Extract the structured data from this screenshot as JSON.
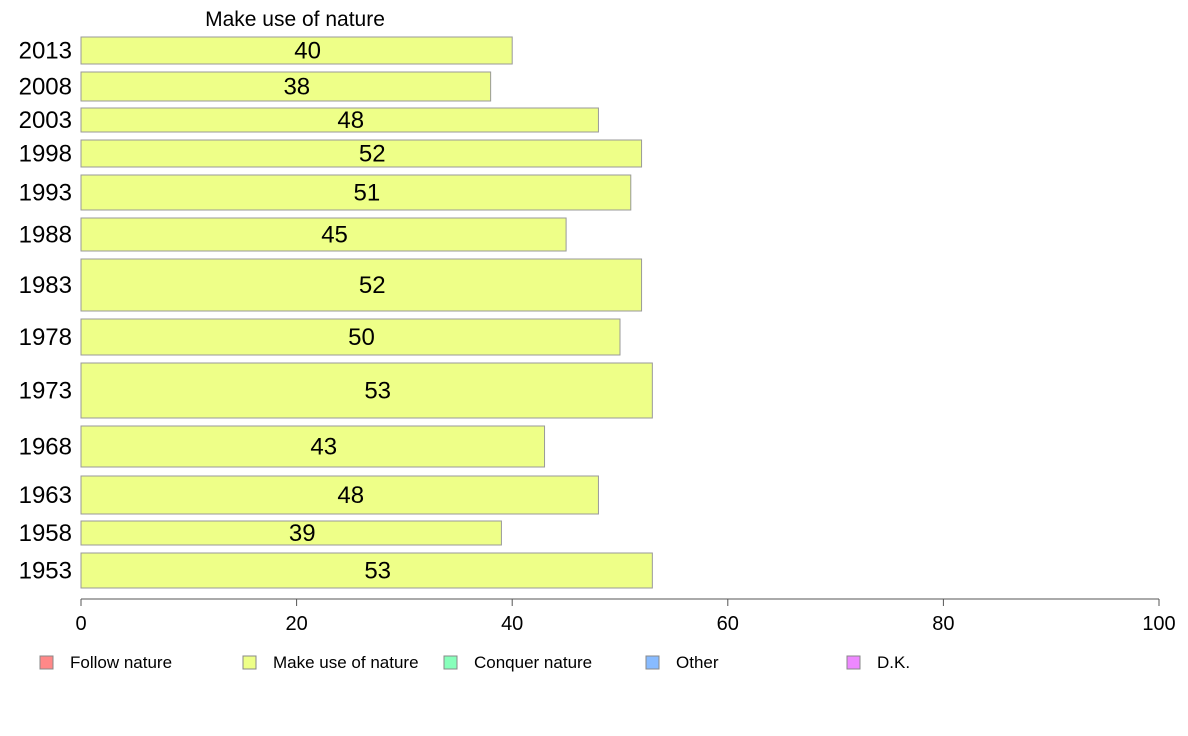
{
  "chart_data": {
    "type": "bar",
    "orientation": "horizontal",
    "title": "Make use of nature",
    "xlabel": "",
    "ylabel": "",
    "xlim": [
      0,
      100
    ],
    "xticks": [
      0,
      20,
      40,
      60,
      80,
      100
    ],
    "grid": false,
    "categories": [
      "2013",
      "2008",
      "2003",
      "1998",
      "1993",
      "1988",
      "1983",
      "1978",
      "1973",
      "1968",
      "1963",
      "1958",
      "1953"
    ],
    "series": [
      {
        "name": "Make use of nature",
        "values": [
          40,
          38,
          48,
          52,
          51,
          45,
          52,
          50,
          53,
          43,
          48,
          39,
          53
        ],
        "color": "#eeff88"
      }
    ],
    "bar_border_color": "#999999",
    "legend_position": "bottom",
    "legend": [
      {
        "label": "Follow nature",
        "color": "#ff8888"
      },
      {
        "label": "Make use of nature",
        "color": "#eeff88"
      },
      {
        "label": "Conquer nature",
        "color": "#88ffbb"
      },
      {
        "label": "Other",
        "color": "#88bbff"
      },
      {
        "label": "D.K.",
        "color": "#ee88ff"
      }
    ]
  }
}
